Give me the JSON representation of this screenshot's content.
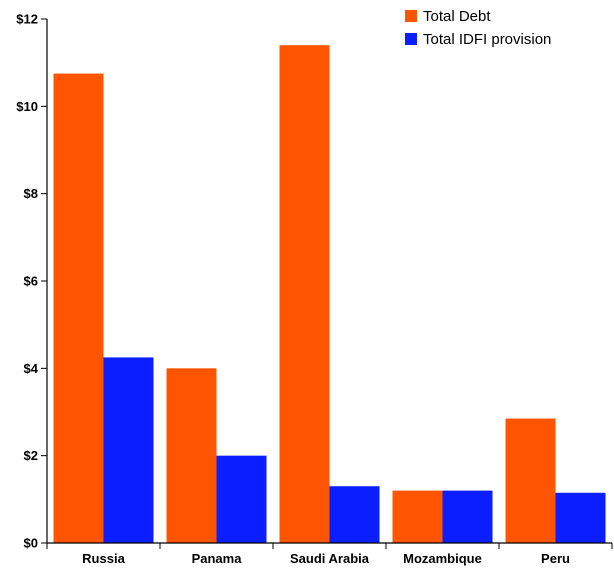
{
  "chart_data": {
    "type": "bar",
    "categories": [
      "Russia",
      "Panama",
      "Saudi Arabia",
      "Mozambique",
      "Peru"
    ],
    "series": [
      {
        "name": "Total Debt",
        "color": "#ff5500",
        "values": [
          10.75,
          4.0,
          11.4,
          1.2,
          2.85
        ]
      },
      {
        "name": "Total IDFI provision",
        "color": "#0a1eff",
        "values": [
          4.25,
          2.0,
          1.3,
          1.2,
          1.15
        ]
      }
    ],
    "ylim": [
      0,
      12
    ],
    "yticks": [
      0,
      2,
      4,
      6,
      8,
      10,
      12
    ],
    "ytick_labels": [
      "$0",
      "$2",
      "$4",
      "$6",
      "$8",
      "$10",
      "$12"
    ],
    "legend_position": "top-right",
    "grid": false
  }
}
